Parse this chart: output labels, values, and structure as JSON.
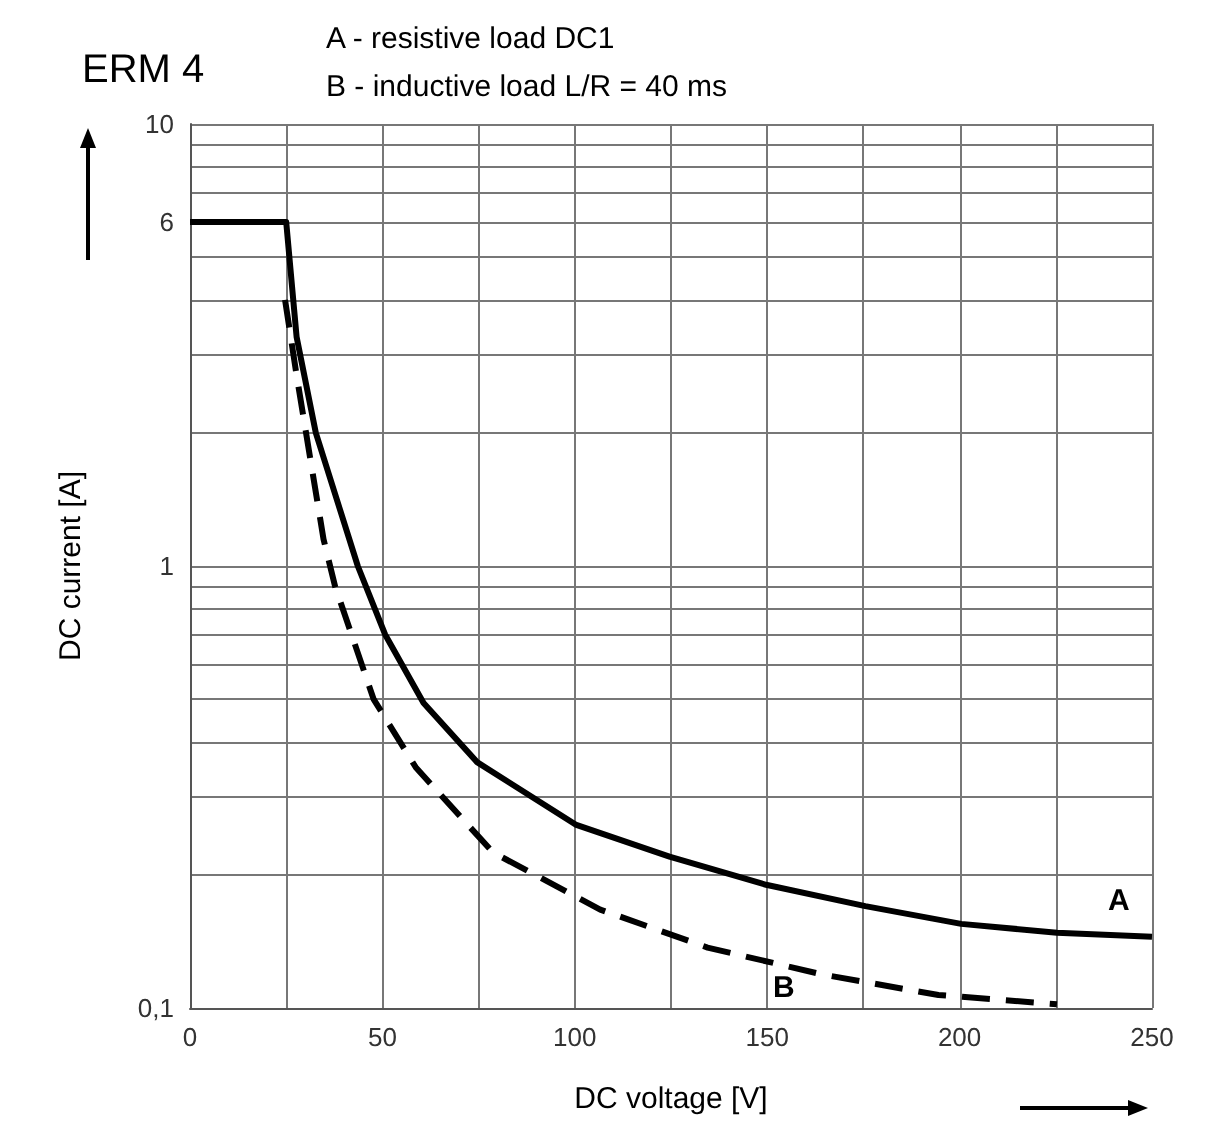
{
  "chart_data": {
    "type": "line",
    "title": "ERM 4",
    "annotations": [
      "A - resistive load DC1",
      "B - inductive load L/R = 40 ms"
    ],
    "xlabel": "DC voltage [V]",
    "ylabel": "DC current [A]",
    "xlim": [
      0,
      250
    ],
    "xticks": [
      0,
      {
        "value": 25,
        "label": null
      },
      50,
      {
        "value": 75,
        "label": null
      },
      100,
      {
        "value": 125,
        "label": null
      },
      150,
      {
        "value": 175,
        "label": null
      },
      200,
      {
        "value": 225,
        "label": null
      },
      250
    ],
    "ylim": [
      0.1,
      10
    ],
    "yticks": [
      {
        "value": 0.1,
        "label": "0,1"
      },
      {
        "value": 0.2,
        "label": null
      },
      {
        "value": 0.3,
        "label": null
      },
      {
        "value": 0.4,
        "label": null
      },
      {
        "value": 0.5,
        "label": null
      },
      {
        "value": 0.6,
        "label": null
      },
      {
        "value": 0.7,
        "label": null
      },
      {
        "value": 0.8,
        "label": null
      },
      {
        "value": 0.9,
        "label": null
      },
      1,
      {
        "value": 2,
        "label": null
      },
      {
        "value": 3,
        "label": null
      },
      {
        "value": 4,
        "label": null
      },
      {
        "value": 5,
        "label": null
      },
      6,
      {
        "value": 7,
        "label": null
      },
      {
        "value": 8,
        "label": null
      },
      {
        "value": 9,
        "label": null
      },
      10
    ],
    "log": "y",
    "grid": true,
    "series": [
      {
        "name": "A",
        "color": "#000000",
        "line_style": "solid",
        "x": [
          0,
          25,
          27.7,
          32.7,
          43.6,
          50.7,
          60.7,
          74.6,
          100.2,
          124.6,
          149.7,
          175.5,
          200.4,
          225.3,
          250
        ],
        "values": [
          6,
          6,
          3.3,
          2.0,
          1.0,
          0.7,
          0.49,
          0.36,
          0.26,
          0.22,
          0.19,
          0.17,
          0.155,
          0.148,
          0.145
        ]
      },
      {
        "name": "B",
        "color": "#000000",
        "line_style": "dashed",
        "x": [
          24.7,
          27.7,
          34.7,
          37.7,
          47.7,
          58.7,
          78.7,
          106.6,
          134.5,
          164.5,
          194.5,
          225.3
        ],
        "values": [
          4.0,
          2.7,
          1.15,
          0.9,
          0.5,
          0.35,
          0.225,
          0.167,
          0.137,
          0.119,
          0.107,
          0.102
        ]
      }
    ]
  }
}
